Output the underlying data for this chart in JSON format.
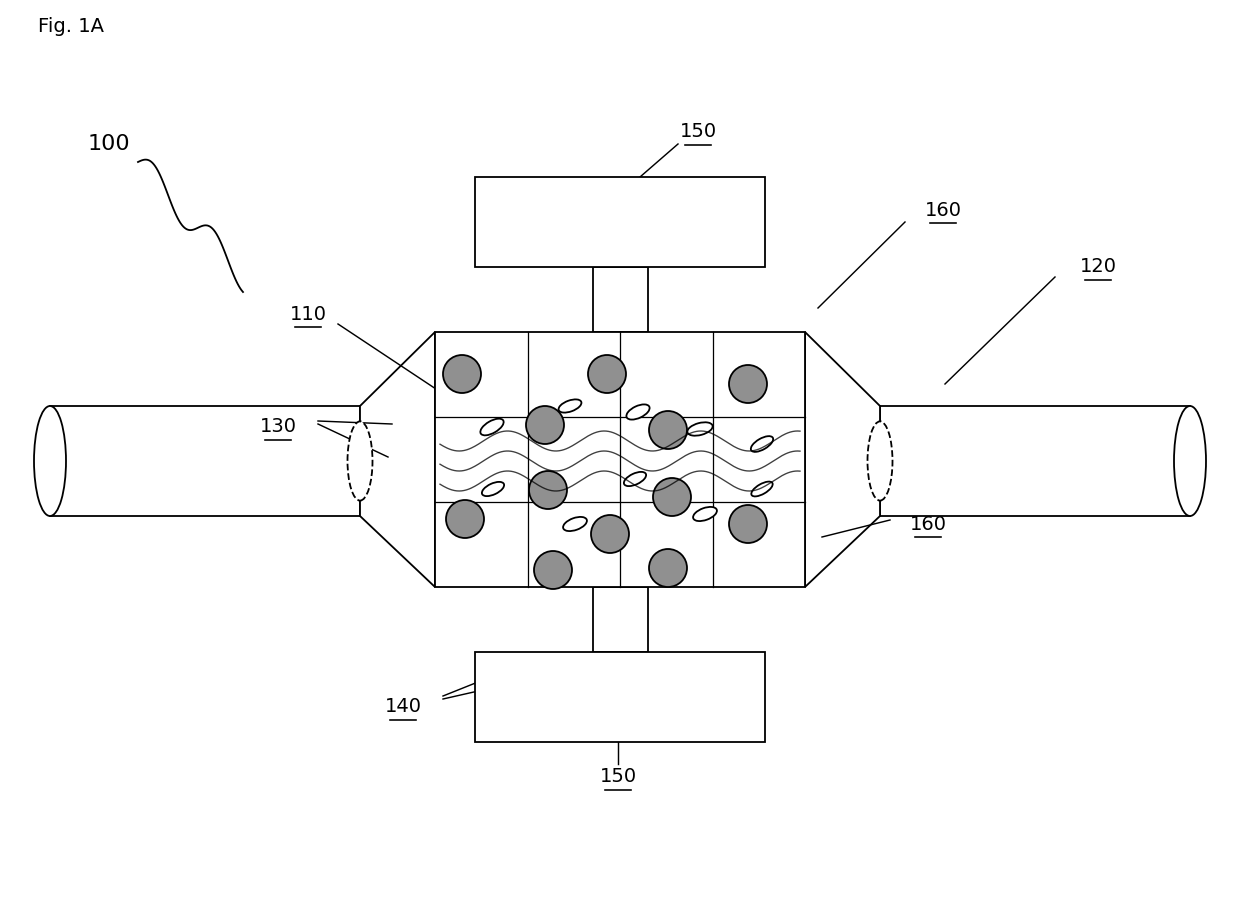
{
  "fig_label": "Fig. 1A",
  "label_100": "100",
  "label_110": "110",
  "label_120": "120",
  "label_130": "130",
  "label_140": "140",
  "label_150": "150",
  "label_160": "160",
  "bg_color": "#ffffff",
  "line_color": "#000000",
  "fill_dark": "#909090",
  "line_width": 1.3
}
